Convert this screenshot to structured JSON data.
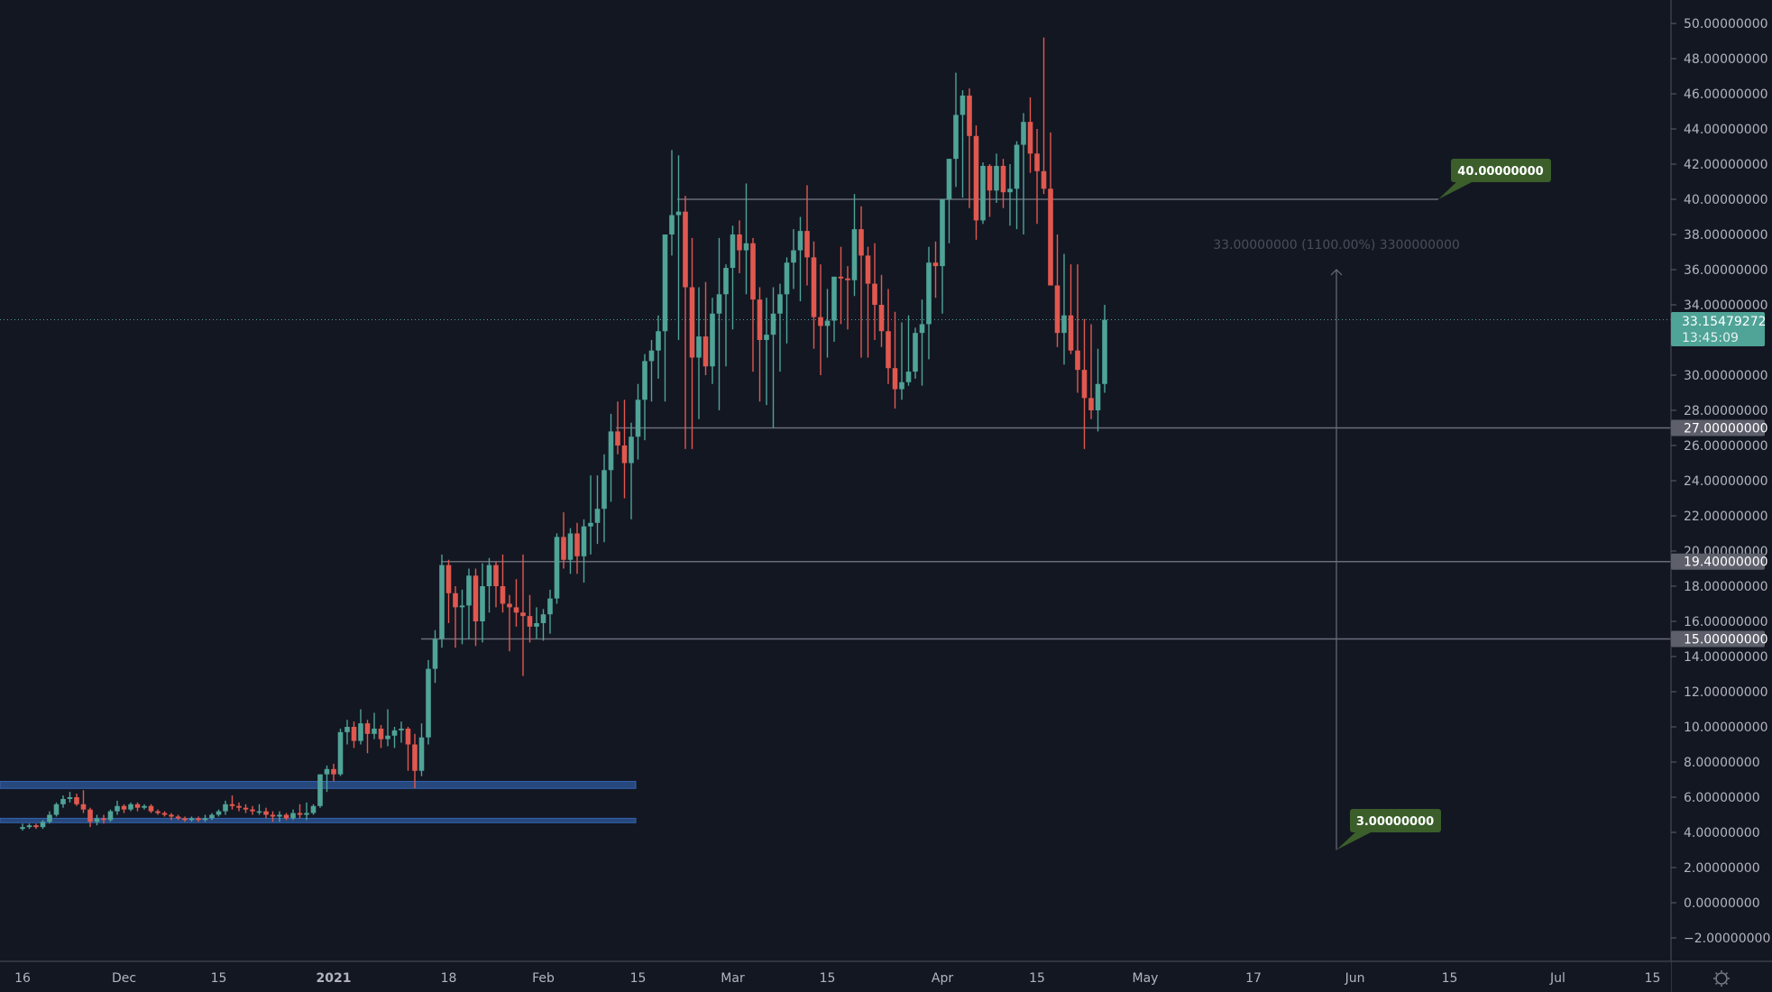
{
  "colors": {
    "background": "#131722",
    "up": "#4fa397",
    "down": "#e0584f",
    "level_line": "#6a6d78",
    "zone": "#2e5a9c",
    "callout": "#3b5e2b",
    "price_badge": "#4fa397",
    "level_badge": "#5d606b"
  },
  "chart_data": {
    "type": "candlestick",
    "ylim": [
      -3,
      51
    ],
    "grid": false,
    "y_tick_labels": [
      "50.00000000",
      "48.00000000",
      "46.00000000",
      "44.00000000",
      "42.00000000",
      "40.00000000",
      "38.00000000",
      "36.00000000",
      "34.00000000",
      "30.00000000",
      "28.00000000",
      "26.00000000",
      "24.00000000",
      "22.00000000",
      "20.00000000",
      "18.00000000",
      "16.00000000",
      "14.00000000",
      "12.00000000",
      "10.00000000",
      "8.00000000",
      "6.00000000",
      "4.00000000",
      "2.00000000",
      "0.00000000",
      "−2.00000000"
    ],
    "y_tick_values": [
      50,
      48,
      46,
      44,
      42,
      40,
      38,
      36,
      34,
      30,
      28,
      26,
      24,
      22,
      20,
      18,
      16,
      14,
      12,
      10,
      8,
      6,
      4,
      2,
      0,
      -2
    ],
    "x_tick_labels": [
      "16",
      "Dec",
      "15",
      "2021",
      "18",
      "Feb",
      "15",
      "Mar",
      "15",
      "Apr",
      "15",
      "May",
      "17",
      "Jun",
      "15",
      "Jul",
      "15"
    ],
    "candles_ohlc": [
      [
        4.2,
        4.5,
        4.1,
        4.3
      ],
      [
        4.3,
        4.5,
        4.2,
        4.4
      ],
      [
        4.4,
        4.5,
        4.2,
        4.3
      ],
      [
        4.3,
        4.7,
        4.2,
        4.6
      ],
      [
        4.6,
        5.2,
        4.5,
        5.0
      ],
      [
        5.0,
        5.7,
        4.9,
        5.6
      ],
      [
        5.6,
        6.1,
        5.4,
        5.9
      ],
      [
        5.9,
        6.3,
        5.7,
        6.0
      ],
      [
        6.0,
        6.2,
        5.5,
        5.6
      ],
      [
        5.6,
        6.4,
        5.1,
        5.3
      ],
      [
        5.3,
        5.4,
        4.3,
        4.6
      ],
      [
        4.6,
        5.0,
        4.4,
        4.8
      ],
      [
        4.8,
        5.0,
        4.5,
        4.7
      ],
      [
        4.7,
        5.3,
        4.6,
        5.2
      ],
      [
        5.2,
        5.8,
        5.0,
        5.5
      ],
      [
        5.5,
        5.6,
        5.1,
        5.3
      ],
      [
        5.3,
        5.7,
        5.2,
        5.6
      ],
      [
        5.6,
        5.7,
        5.2,
        5.4
      ],
      [
        5.4,
        5.6,
        5.3,
        5.5
      ],
      [
        5.5,
        5.6,
        5.1,
        5.2
      ],
      [
        5.2,
        5.3,
        5.0,
        5.1
      ],
      [
        5.1,
        5.2,
        4.9,
        5.0
      ],
      [
        5.0,
        5.1,
        4.7,
        4.9
      ],
      [
        4.9,
        5.0,
        4.7,
        4.8
      ],
      [
        4.8,
        4.9,
        4.6,
        4.7
      ],
      [
        4.7,
        4.9,
        4.6,
        4.8
      ],
      [
        4.8,
        4.9,
        4.6,
        4.7
      ],
      [
        4.7,
        5.0,
        4.6,
        4.8
      ],
      [
        4.8,
        5.1,
        4.7,
        5.0
      ],
      [
        5.0,
        5.3,
        4.9,
        5.2
      ],
      [
        5.2,
        5.8,
        5.0,
        5.6
      ],
      [
        5.6,
        6.1,
        5.3,
        5.5
      ],
      [
        5.5,
        5.7,
        5.2,
        5.4
      ],
      [
        5.4,
        5.6,
        5.1,
        5.3
      ],
      [
        5.3,
        5.5,
        5.0,
        5.2
      ],
      [
        5.2,
        5.6,
        5.0,
        5.2
      ],
      [
        5.2,
        5.4,
        4.8,
        5.0
      ],
      [
        5.0,
        5.2,
        4.6,
        4.9
      ],
      [
        4.9,
        5.2,
        4.6,
        5.0
      ],
      [
        5.0,
        5.1,
        4.7,
        4.8
      ],
      [
        4.8,
        5.3,
        4.7,
        5.1
      ],
      [
        5.1,
        5.6,
        4.8,
        5.0
      ],
      [
        5.0,
        5.7,
        4.7,
        5.1
      ],
      [
        5.1,
        5.6,
        5.0,
        5.5
      ],
      [
        5.5,
        7.3,
        5.4,
        7.3
      ],
      [
        7.3,
        7.8,
        6.3,
        7.6
      ],
      [
        7.6,
        7.9,
        6.9,
        7.3
      ],
      [
        7.3,
        9.9,
        7.2,
        9.7
      ],
      [
        9.7,
        10.4,
        9.0,
        10.0
      ],
      [
        10.0,
        10.3,
        8.8,
        9.2
      ],
      [
        9.2,
        11.0,
        9.0,
        10.2
      ],
      [
        10.2,
        10.4,
        8.5,
        9.6
      ],
      [
        9.6,
        10.8,
        9.3,
        9.9
      ],
      [
        9.9,
        10.1,
        8.8,
        9.3
      ],
      [
        9.3,
        11.0,
        8.9,
        9.5
      ],
      [
        9.5,
        10.0,
        8.8,
        9.8
      ],
      [
        9.8,
        10.3,
        9.1,
        9.9
      ],
      [
        9.9,
        10.0,
        7.5,
        9.0
      ],
      [
        9.0,
        9.6,
        6.5,
        7.5
      ],
      [
        7.5,
        10.2,
        7.2,
        9.4
      ],
      [
        9.4,
        13.8,
        9.0,
        13.3
      ],
      [
        13.3,
        15.5,
        12.5,
        15.0
      ],
      [
        15.0,
        19.8,
        14.5,
        19.2
      ],
      [
        19.2,
        19.5,
        15.9,
        17.6
      ],
      [
        17.6,
        18.0,
        14.5,
        16.8
      ],
      [
        16.8,
        17.8,
        14.7,
        16.9
      ],
      [
        16.9,
        19.0,
        15.0,
        18.6
      ],
      [
        18.6,
        19.0,
        14.6,
        16.0
      ],
      [
        16.0,
        19.3,
        14.8,
        18.0
      ],
      [
        18.0,
        19.6,
        16.5,
        19.2
      ],
      [
        19.2,
        19.4,
        16.8,
        18.0
      ],
      [
        18.0,
        19.8,
        16.5,
        17.0
      ],
      [
        17.0,
        17.5,
        14.3,
        16.8
      ],
      [
        16.8,
        18.4,
        15.7,
        16.5
      ],
      [
        16.5,
        19.8,
        12.9,
        16.3
      ],
      [
        16.3,
        17.5,
        14.8,
        15.7
      ],
      [
        15.7,
        16.8,
        15.0,
        15.9
      ],
      [
        15.9,
        16.7,
        14.9,
        16.4
      ],
      [
        16.4,
        17.8,
        15.3,
        17.3
      ],
      [
        17.3,
        21.0,
        17.0,
        20.8
      ],
      [
        20.8,
        22.2,
        19.0,
        19.5
      ],
      [
        19.5,
        21.3,
        18.7,
        21.0
      ],
      [
        21.0,
        21.6,
        18.7,
        19.7
      ],
      [
        19.7,
        21.8,
        18.2,
        21.4
      ],
      [
        21.4,
        24.3,
        19.8,
        21.6
      ],
      [
        21.6,
        24.3,
        20.4,
        22.4
      ],
      [
        22.4,
        25.5,
        20.5,
        24.6
      ],
      [
        24.6,
        27.8,
        22.8,
        26.8
      ],
      [
        26.8,
        28.5,
        25.5,
        26.0
      ],
      [
        26.0,
        28.6,
        23.0,
        25.0
      ],
      [
        25.0,
        27.3,
        21.8,
        26.5
      ],
      [
        26.5,
        29.5,
        25.2,
        28.6
      ],
      [
        28.6,
        31.2,
        26.3,
        30.8
      ],
      [
        30.8,
        32.0,
        28.5,
        31.4
      ],
      [
        31.4,
        33.4,
        29.8,
        32.5
      ],
      [
        32.5,
        37.5,
        28.5,
        38.0
      ],
      [
        38.0,
        42.8,
        36.8,
        39.1
      ],
      [
        39.1,
        42.5,
        32.0,
        39.3
      ],
      [
        39.3,
        40.2,
        25.8,
        35.0
      ],
      [
        35.0,
        37.8,
        25.8,
        31.0
      ],
      [
        31.0,
        35.0,
        27.5,
        32.2
      ],
      [
        32.2,
        35.3,
        30.0,
        30.5
      ],
      [
        30.5,
        34.4,
        29.5,
        33.5
      ],
      [
        33.5,
        37.8,
        28.0,
        34.6
      ],
      [
        34.6,
        36.3,
        30.5,
        36.1
      ],
      [
        36.1,
        38.5,
        32.6,
        38.0
      ],
      [
        38.0,
        38.8,
        35.8,
        37.1
      ],
      [
        37.1,
        40.9,
        34.6,
        37.5
      ],
      [
        37.5,
        37.8,
        30.2,
        34.3
      ],
      [
        34.3,
        35.0,
        28.5,
        32.0
      ],
      [
        32.0,
        34.4,
        28.3,
        32.3
      ],
      [
        32.3,
        35.0,
        27.0,
        33.5
      ],
      [
        33.5,
        35.2,
        30.2,
        34.6
      ],
      [
        34.6,
        36.7,
        31.8,
        36.4
      ],
      [
        36.4,
        38.3,
        34.9,
        37.1
      ],
      [
        37.1,
        39.0,
        34.2,
        38.2
      ],
      [
        38.2,
        40.8,
        35.1,
        36.7
      ],
      [
        36.7,
        37.6,
        31.5,
        33.3
      ],
      [
        33.3,
        36.3,
        30.0,
        32.8
      ],
      [
        32.8,
        34.9,
        31.0,
        33.1
      ],
      [
        33.1,
        35.4,
        31.9,
        35.6
      ],
      [
        35.6,
        37.3,
        32.9,
        35.5
      ],
      [
        35.5,
        36.2,
        32.6,
        35.4
      ],
      [
        35.4,
        40.3,
        34.5,
        38.3
      ],
      [
        38.3,
        39.6,
        31.0,
        36.8
      ],
      [
        36.8,
        37.3,
        31.0,
        35.2
      ],
      [
        35.2,
        37.5,
        32.0,
        34.0
      ],
      [
        34.0,
        35.7,
        31.6,
        32.5
      ],
      [
        32.5,
        34.9,
        29.5,
        30.4
      ],
      [
        30.4,
        33.6,
        28.1,
        29.2
      ],
      [
        29.2,
        33.0,
        28.6,
        29.6
      ],
      [
        29.6,
        33.4,
        29.4,
        30.2
      ],
      [
        30.2,
        32.7,
        29.8,
        32.4
      ],
      [
        32.4,
        34.3,
        29.4,
        32.9
      ],
      [
        32.9,
        37.3,
        30.9,
        36.4
      ],
      [
        36.4,
        37.6,
        34.4,
        36.2
      ],
      [
        36.2,
        39.4,
        33.5,
        40.0
      ],
      [
        40.0,
        42.3,
        37.5,
        42.3
      ],
      [
        42.3,
        47.2,
        40.7,
        44.8
      ],
      [
        44.8,
        46.2,
        40.1,
        45.9
      ],
      [
        45.9,
        46.3,
        39.5,
        43.6
      ],
      [
        43.6,
        44.2,
        37.7,
        38.8
      ],
      [
        38.8,
        42.1,
        38.6,
        41.9
      ],
      [
        41.9,
        42.0,
        39.0,
        40.5
      ],
      [
        40.5,
        42.6,
        39.8,
        41.9
      ],
      [
        41.9,
        42.3,
        39.5,
        40.4
      ],
      [
        40.4,
        42.0,
        38.5,
        40.6
      ],
      [
        40.6,
        43.3,
        38.3,
        43.1
      ],
      [
        43.1,
        44.9,
        38.0,
        44.4
      ],
      [
        44.4,
        45.8,
        41.5,
        42.6
      ],
      [
        42.6,
        44.0,
        38.6,
        41.6
      ],
      [
        41.6,
        49.2,
        40.3,
        40.6
      ],
      [
        40.6,
        43.8,
        36.7,
        35.1
      ],
      [
        35.1,
        38.0,
        31.6,
        32.4
      ],
      [
        32.4,
        36.9,
        30.6,
        33.4
      ],
      [
        33.4,
        36.3,
        31.2,
        31.4
      ],
      [
        31.4,
        36.3,
        29.0,
        30.3
      ],
      [
        30.3,
        33.2,
        25.8,
        28.7
      ],
      [
        28.7,
        32.9,
        27.5,
        28.0
      ],
      [
        28.0,
        31.5,
        26.8,
        29.5
      ],
      [
        29.5,
        34.0,
        29.0,
        33.15
      ]
    ],
    "horizontal_levels": [
      40,
      27,
      19.4,
      15
    ],
    "zones": [
      [
        6.5,
        6.9
      ],
      [
        4.55,
        4.8
      ]
    ],
    "current_price": "33.15479272",
    "countdown": "13:45:09",
    "level_labels": [
      "27.00000000",
      "19.40000000",
      "15.00000000"
    ],
    "callouts": [
      "40.00000000",
      "3.00000000"
    ],
    "measure": {
      "from": 3,
      "to": 36,
      "label": "33.00000000 (1100.00%) 3300000000"
    }
  },
  "icons": {
    "settings": "gear-icon"
  }
}
